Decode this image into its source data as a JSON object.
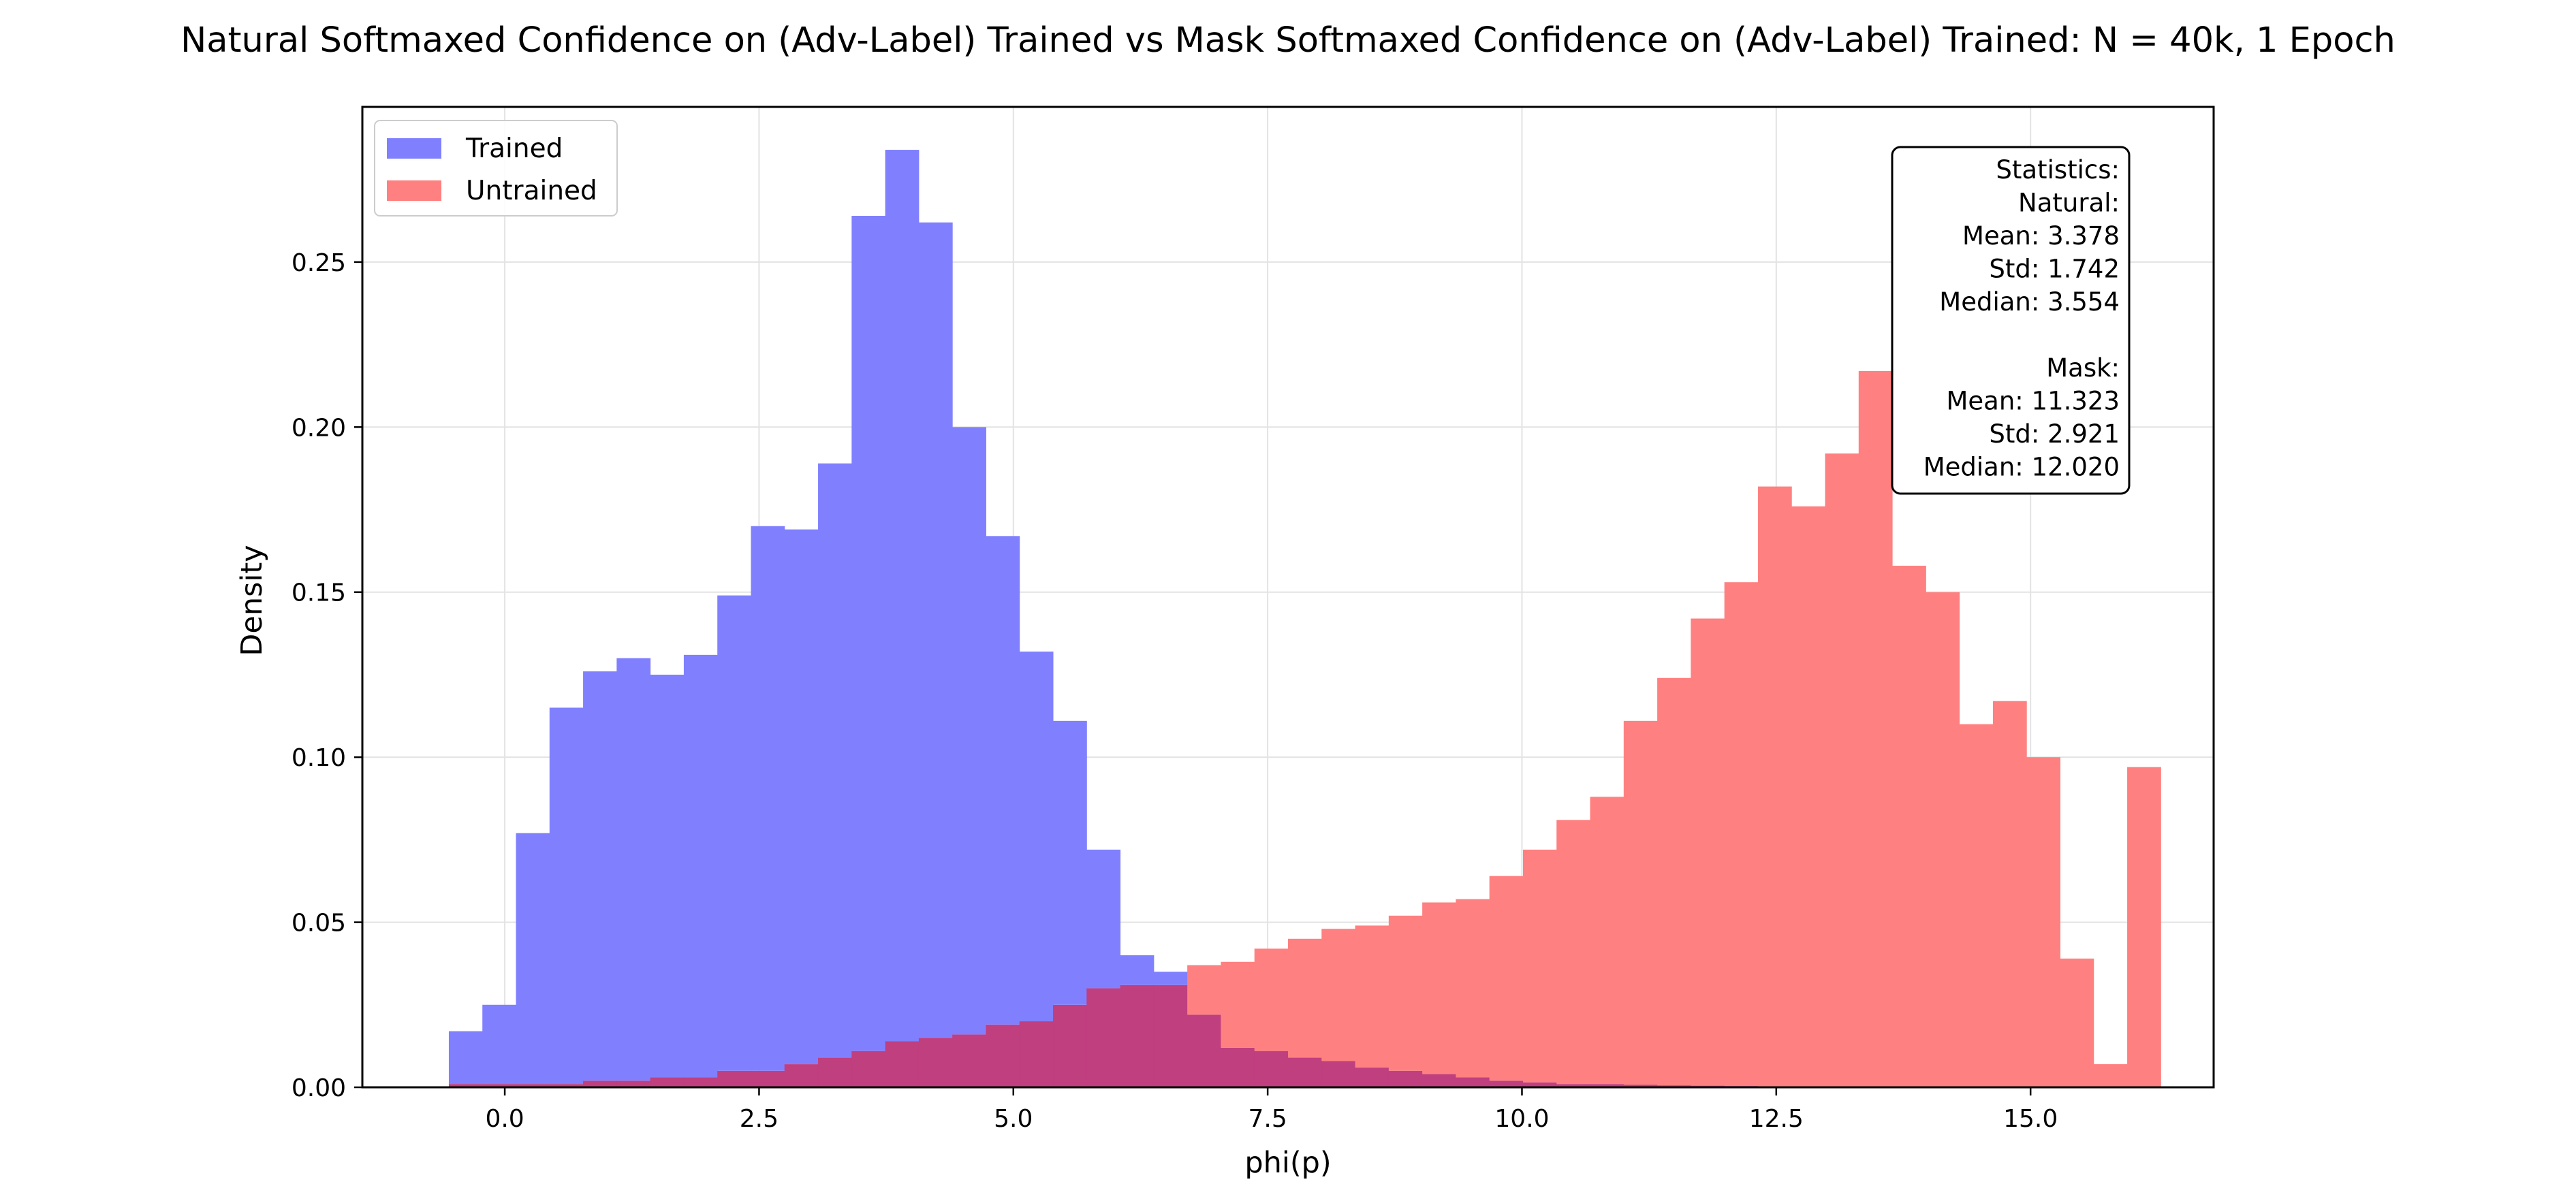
{
  "chart_data": {
    "type": "bar",
    "title": "Natural Softmaxed Confidence on (Adv-Label) Trained vs Mask Softmaxed Confidence on (Adv-Label) Trained: N = 40k, 1 Epoch",
    "xlabel": "phi(p)",
    "ylabel": "Density",
    "xlim": [
      -1.4,
      16.8
    ],
    "ylim": [
      0,
      0.297
    ],
    "xticks": [
      0.0,
      2.5,
      5.0,
      7.5,
      10.0,
      12.5,
      15.0
    ],
    "xtick_labels": [
      "0.0",
      "2.5",
      "5.0",
      "7.5",
      "10.0",
      "12.5",
      "15.0"
    ],
    "yticks": [
      0.0,
      0.05,
      0.1,
      0.15,
      0.2,
      0.25
    ],
    "ytick_labels": [
      "0.00",
      "0.05",
      "0.10",
      "0.15",
      "0.20",
      "0.25"
    ],
    "grid": true,
    "legend_position": "upper-left",
    "bin_start": -0.55,
    "bin_width": 0.33,
    "series": [
      {
        "name": "Trained",
        "color": "#8080ff",
        "values": [
          0.017,
          0.025,
          0.077,
          0.115,
          0.126,
          0.13,
          0.125,
          0.131,
          0.149,
          0.17,
          0.169,
          0.189,
          0.264,
          0.284,
          0.262,
          0.2,
          0.167,
          0.132,
          0.111,
          0.072,
          0.04,
          0.035,
          0.022,
          0.012,
          0.011,
          0.009,
          0.008,
          0.006,
          0.005,
          0.004,
          0.003,
          0.002,
          0.0015,
          0.001,
          0.001,
          0.0008,
          0.0006,
          0.0005,
          0.0004,
          0.0003,
          0.0002,
          0.0002,
          0.0001,
          0.0001,
          0.0001,
          0.0,
          0.0,
          0.0,
          0.0,
          0.0
        ]
      },
      {
        "name": "Untrained",
        "color": "#ff8080",
        "values": [
          0.001,
          0.001,
          0.001,
          0.001,
          0.002,
          0.002,
          0.003,
          0.003,
          0.005,
          0.005,
          0.007,
          0.009,
          0.011,
          0.014,
          0.015,
          0.016,
          0.019,
          0.02,
          0.025,
          0.03,
          0.031,
          0.031,
          0.037,
          0.038,
          0.042,
          0.045,
          0.048,
          0.049,
          0.052,
          0.056,
          0.057,
          0.064,
          0.072,
          0.081,
          0.088,
          0.111,
          0.124,
          0.142,
          0.153,
          0.182,
          0.176,
          0.192,
          0.217,
          0.158,
          0.15,
          0.11,
          0.117,
          0.1,
          0.039,
          0.007,
          0.097
        ]
      }
    ],
    "overlap_color": "#c03f7f",
    "stats_box": {
      "lines": [
        "Statistics:",
        "Natural:",
        "Mean: 3.378",
        "Std: 1.742",
        "Median: 3.554",
        "",
        "Mask:",
        "Mean: 11.323",
        "Std: 2.921",
        "Median: 12.020"
      ]
    }
  }
}
